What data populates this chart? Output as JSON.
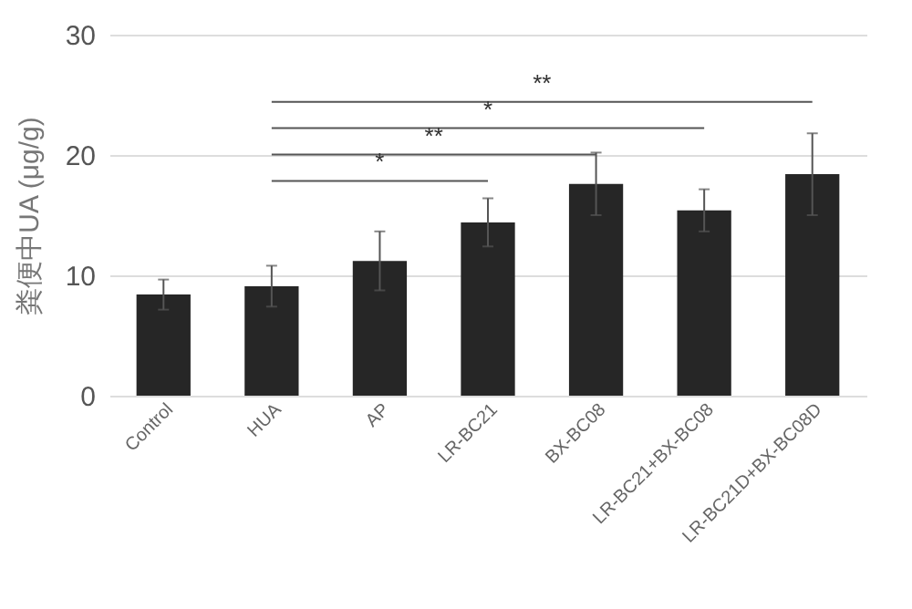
{
  "chart_data": {
    "type": "bar",
    "ylabel": "粪便中UA (μg/g)",
    "categories": [
      "Control",
      "HUA",
      "AP",
      "LR-BC21",
      "BX-BC08",
      "LR-BC21+BX-BC08",
      "LR-BC21D+BX-BC08D"
    ],
    "values": [
      8.4,
      9.1,
      11.2,
      14.4,
      17.6,
      15.4,
      18.4
    ],
    "errors": [
      1.25,
      1.7,
      2.45,
      2.0,
      2.6,
      1.75,
      3.4
    ],
    "color": "#262626",
    "ylim": [
      0,
      30
    ],
    "yticks": [
      0,
      10,
      20,
      30
    ],
    "grid": "y",
    "annotations": [
      "*",
      "**",
      "*",
      "**"
    ]
  }
}
